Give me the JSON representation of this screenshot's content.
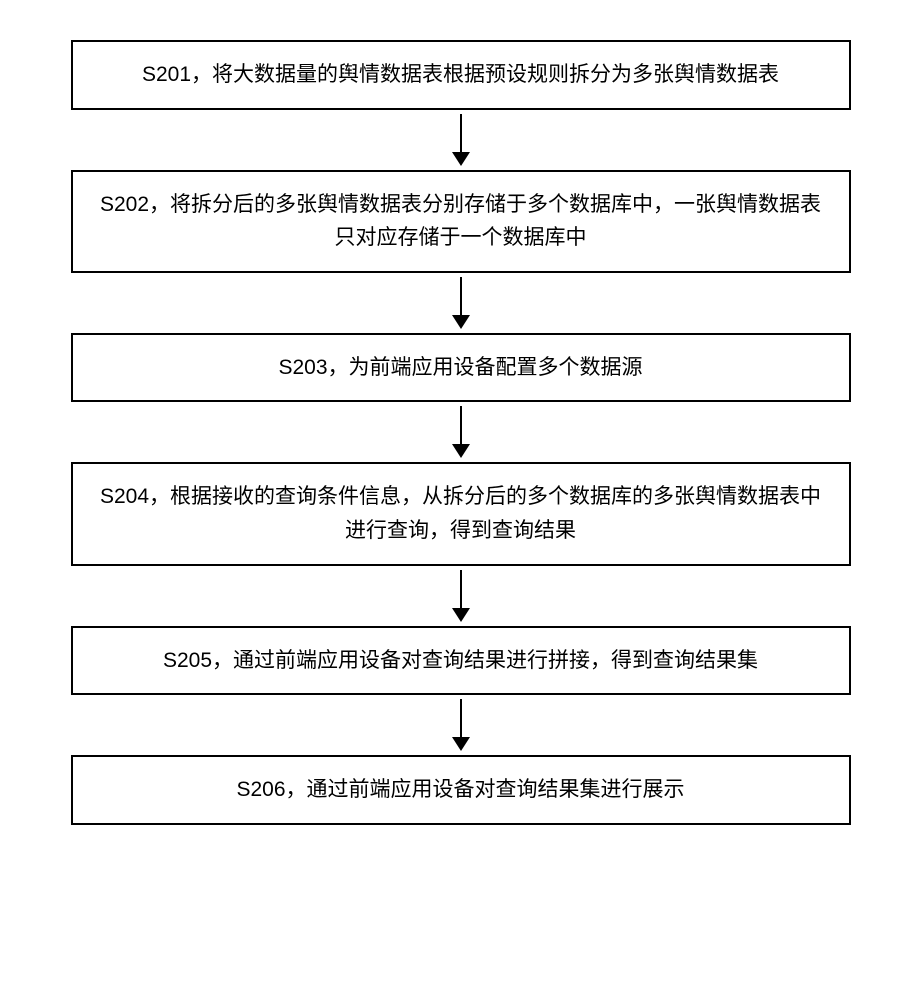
{
  "flowchart": {
    "type": "flowchart",
    "background_color": "#ffffff",
    "box_border_color": "#000000",
    "box_border_width": 2,
    "arrow_color": "#000000",
    "font_size": 21,
    "font_color": "#000000",
    "nodes": [
      {
        "id": "s201",
        "text": "S201，将大数据量的舆情数据表根据预设规则拆分为多张舆情数据表",
        "height": "short"
      },
      {
        "id": "s202",
        "text": "S202，将拆分后的多张舆情数据表分别存储于多个数据库中，一张舆情数据表只对应存储于一个数据库中",
        "height": "tall"
      },
      {
        "id": "s203",
        "text": "S203，为前端应用设备配置多个数据源",
        "height": "short"
      },
      {
        "id": "s204",
        "text": "S204，根据接收的查询条件信息，从拆分后的多个数据库的多张舆情数据表中进行查询，得到查询结果",
        "height": "tall"
      },
      {
        "id": "s205",
        "text": "S205，通过前端应用设备对查询结果进行拼接，得到查询结果集",
        "height": "short"
      },
      {
        "id": "s206",
        "text": "S206，通过前端应用设备对查询结果集进行展示",
        "height": "short"
      }
    ],
    "edges": [
      {
        "from": "s201",
        "to": "s202"
      },
      {
        "from": "s202",
        "to": "s203"
      },
      {
        "from": "s203",
        "to": "s204"
      },
      {
        "from": "s204",
        "to": "s205"
      },
      {
        "from": "s205",
        "to": "s206"
      }
    ]
  }
}
